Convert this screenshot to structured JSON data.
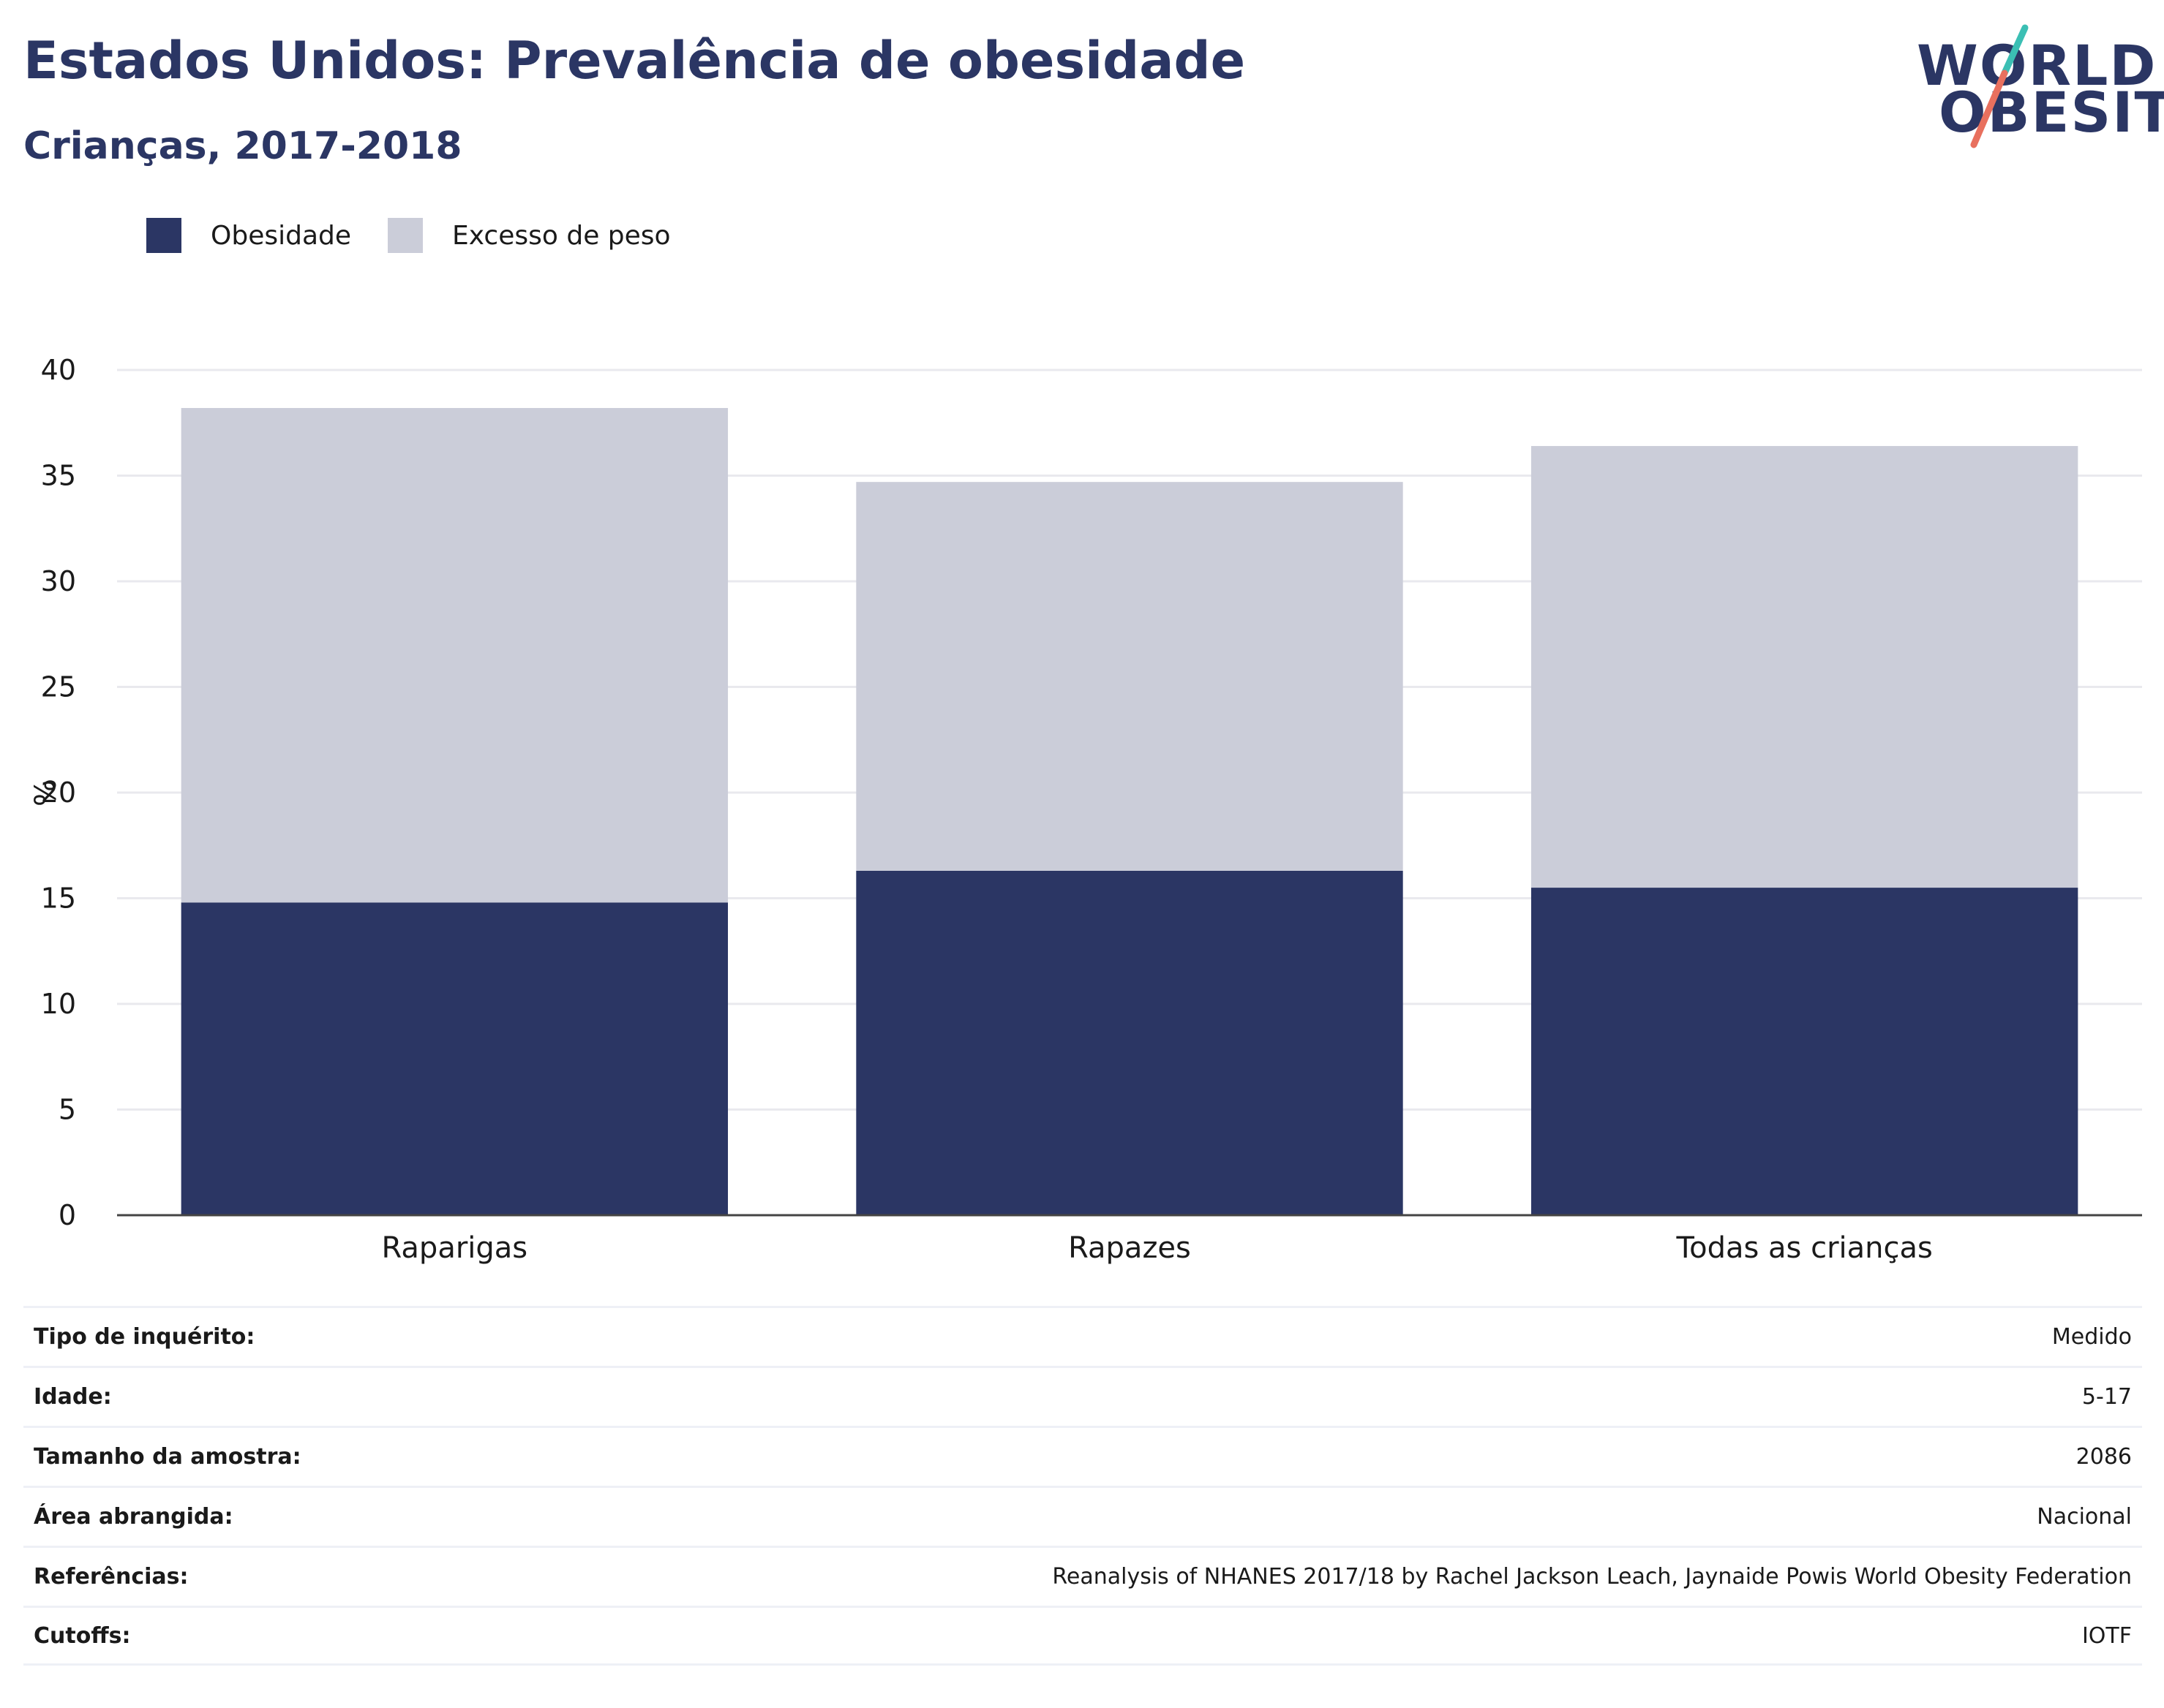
{
  "title": "Estados Unidos: Prevalência de obesidade",
  "subtitle": "Crianças, 2017-2018",
  "logo": {
    "line1": "WORLD",
    "line2": "OBESITY",
    "slash_top_color": "#3bbfb4",
    "slash_bottom_color": "#e8705e"
  },
  "colors": {
    "obesity": "#2b3664",
    "overweight": "#cbcdd9",
    "text": "#2b3664"
  },
  "legend": [
    {
      "label": "Obesidade",
      "color": "#2b3664"
    },
    {
      "label": "Excesso de peso",
      "color": "#cbcdd9"
    }
  ],
  "chart_data": {
    "type": "bar",
    "stacked": true,
    "categories": [
      "Raparigas",
      "Rapazes",
      "Todas as crianças"
    ],
    "series": [
      {
        "name": "Obesidade",
        "values": [
          14.8,
          16.3,
          15.5
        ],
        "color": "#2b3664"
      },
      {
        "name": "Excesso de peso",
        "values": [
          23.4,
          18.4,
          20.9
        ],
        "color": "#cbcdd9"
      }
    ],
    "ylabel": "%",
    "ylim": [
      0,
      40
    ],
    "yticks": [
      0,
      5,
      10,
      15,
      20,
      25,
      30,
      35,
      40
    ],
    "grid": true,
    "legend_position": "top-left"
  },
  "meta": [
    {
      "label": "Tipo de inquérito:",
      "value": "Medido"
    },
    {
      "label": "Idade:",
      "value": "5-17"
    },
    {
      "label": "Tamanho da amostra:",
      "value": "2086"
    },
    {
      "label": "Área abrangida:",
      "value": "Nacional"
    },
    {
      "label": "Referências:",
      "value": "Reanalysis of NHANES 2017/18 by Rachel Jackson Leach, Jaynaide Powis World Obesity Federation"
    },
    {
      "label": "Cutoffs:",
      "value": "IOTF"
    }
  ]
}
